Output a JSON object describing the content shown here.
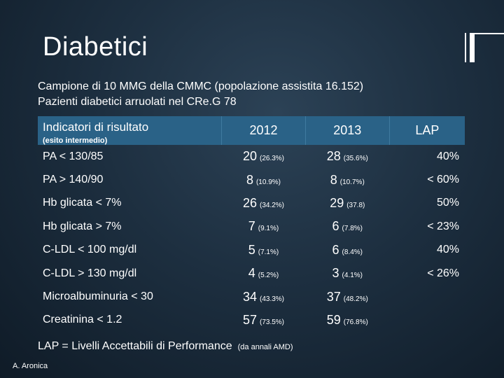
{
  "slide": {
    "title": "Diabetici",
    "subtitle_1": "Campione di 10 MMG della CMMC (popolazione assistita 16.152)",
    "subtitle_2": "Pazienti diabetici arruolati nel CRe.G 78"
  },
  "table": {
    "header": {
      "indicator": "Indicatori di risultato",
      "indicator_note": "(esito intermedio)",
      "col_2012": "2012",
      "col_2013": "2013",
      "col_lap": "LAP"
    },
    "rows": [
      {
        "label": "PA < 130/85",
        "v2012": "20",
        "p2012": "(26.3%)",
        "v2013": "28",
        "p2013": "(35.6%)",
        "lap": "40%"
      },
      {
        "label": "PA > 140/90",
        "v2012": "8",
        "p2012": "(10.9%)",
        "v2013": "8",
        "p2013": "(10.7%)",
        "lap": "< 60%"
      },
      {
        "label": "Hb glicata < 7%",
        "v2012": "26",
        "p2012": "(34.2%)",
        "v2013": "29",
        "p2013": "(37.8)",
        "lap": "50%"
      },
      {
        "label": "Hb glicata > 7%",
        "v2012": "7",
        "p2012": "(9.1%)",
        "v2013": "6",
        "p2013": "(7.8%)",
        "lap": "< 23%"
      },
      {
        "label": "C-LDL < 100 mg/dl",
        "v2012": "5",
        "p2012": "(7.1%)",
        "v2013": "6",
        "p2013": "(8.4%)",
        "lap": "40%"
      },
      {
        "label": "C-LDL > 130 mg/dl",
        "v2012": "4",
        "p2012": "(5.2%)",
        "v2013": "3",
        "p2013": "(4.1%)",
        "lap": "< 26%"
      },
      {
        "label": "Microalbuminuria < 30",
        "v2012": "34",
        "p2012": "(43.3%)",
        "v2013": "37",
        "p2013": "(48.2%)",
        "lap": ""
      },
      {
        "label": "Creatinina < 1.2",
        "v2012": "57",
        "p2012": "(73.5%)",
        "v2013": "59",
        "p2013": "(76.8%)",
        "lap": ""
      }
    ]
  },
  "footnote": {
    "main": "LAP = Livelli Accettabili di Performance",
    "source": "(da annali AMD)"
  },
  "author": "A. Aronica"
}
